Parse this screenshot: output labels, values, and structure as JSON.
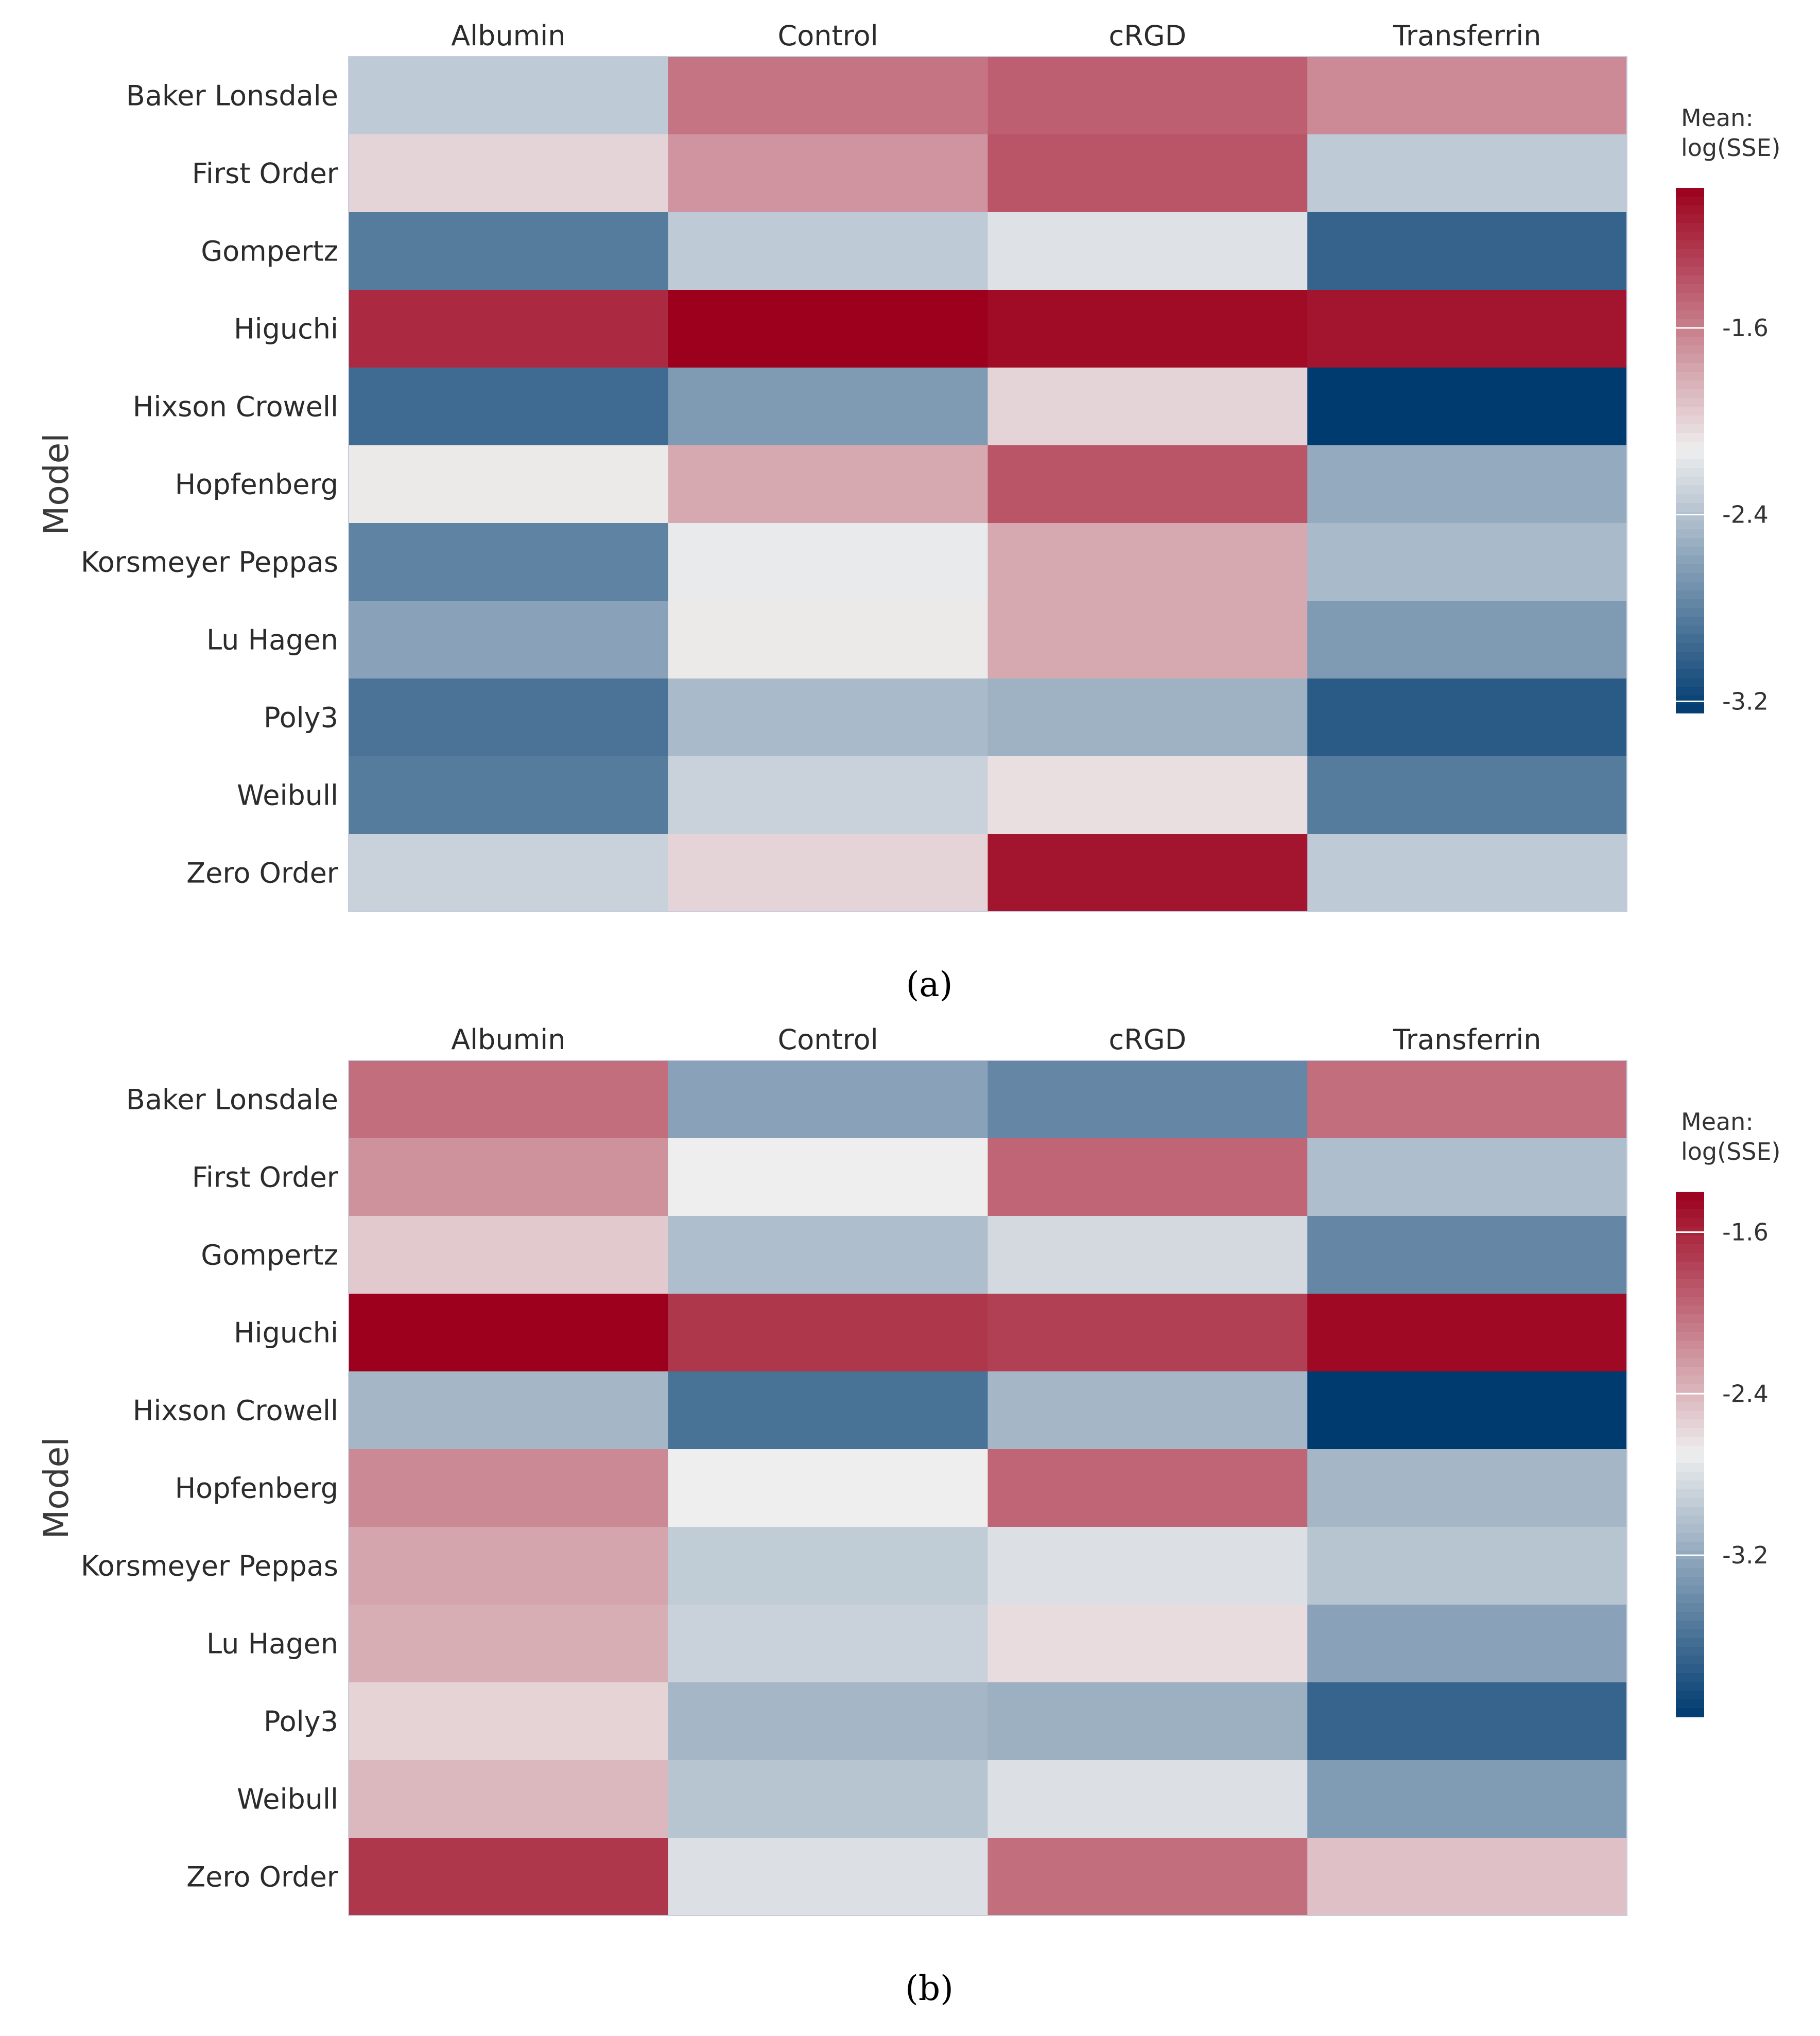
{
  "chart_data": [
    {
      "panel": "(a)",
      "type": "heatmap",
      "columns": [
        "Albumin",
        "Control",
        "cRGD",
        "Transferrin"
      ],
      "rows": [
        "Baker Lonsdale",
        "First Order",
        "Gompertz",
        "Higuchi",
        "Hixson Crowell",
        "Hopfenberg",
        "Korsmeyer Peppas",
        "Lu Hagen",
        "Poly3",
        "Weibull",
        "Zero Order"
      ],
      "ylabel": "Model",
      "legend": {
        "title_line1": "Mean:",
        "title_line2": "log(SSE)",
        "min": -3.25,
        "max": -1.0,
        "ticks": [
          -1.6,
          -2.4,
          -3.2
        ],
        "tick_labels": [
          "-1.6",
          "-2.4",
          "-3.2"
        ]
      },
      "values": [
        [
          -2.35,
          -1.55,
          -1.45,
          -1.65
        ],
        [
          -2.0,
          -1.7,
          -1.4,
          -2.35
        ],
        [
          -2.85,
          -2.35,
          -2.2,
          -3.0
        ],
        [
          -1.2,
          -1.0,
          -1.05,
          -1.1
        ],
        [
          -2.95,
          -2.65,
          -2.0,
          -3.25
        ],
        [
          -2.1,
          -1.8,
          -1.4,
          -2.55
        ],
        [
          -2.8,
          -2.15,
          -1.8,
          -2.45
        ],
        [
          -2.6,
          -2.1,
          -1.8,
          -2.65
        ],
        [
          -2.9,
          -2.45,
          -2.5,
          -3.05
        ],
        [
          -2.85,
          -2.3,
          -2.05,
          -2.85
        ],
        [
          -2.3,
          -2.0,
          -1.1,
          -2.35
        ]
      ]
    },
    {
      "panel": "(b)",
      "type": "heatmap",
      "columns": [
        "Albumin",
        "Control",
        "cRGD",
        "Transferrin"
      ],
      "rows": [
        "Baker Lonsdale",
        "First Order",
        "Gompertz",
        "Higuchi",
        "Hixson Crowell",
        "Hopfenberg",
        "Korsmeyer Peppas",
        "Lu Hagen",
        "Poly3",
        "Weibull",
        "Zero Order"
      ],
      "ylabel": "Model",
      "legend": {
        "title_line1": "Mean:",
        "title_line2": "log(SSE)",
        "min": -4.0,
        "max": -1.4,
        "ticks": [
          -1.6,
          -2.4,
          -3.2
        ],
        "tick_labels": [
          "-1.6",
          "-2.4",
          "-3.2"
        ]
      },
      "values": [
        [
          -2.0,
          -3.25,
          -3.45,
          -2.0
        ],
        [
          -2.2,
          -2.7,
          -1.95,
          -3.05
        ],
        [
          -2.5,
          -3.05,
          -2.85,
          -3.45
        ],
        [
          -1.4,
          -1.7,
          -1.75,
          -1.45
        ],
        [
          -3.1,
          -3.6,
          -3.1,
          -4.0
        ],
        [
          -2.15,
          -2.7,
          -1.95,
          -3.1
        ],
        [
          -2.3,
          -2.95,
          -2.8,
          -3.0
        ],
        [
          -2.35,
          -2.9,
          -2.6,
          -3.25
        ],
        [
          -2.55,
          -3.1,
          -3.15,
          -3.7
        ],
        [
          -2.4,
          -3.0,
          -2.8,
          -3.3
        ],
        [
          -1.7,
          -2.8,
          -2.0,
          -2.45
        ]
      ]
    }
  ],
  "colors": {
    "high": "#9c001c",
    "mid": "#eeeeee",
    "low": "#003b70"
  }
}
